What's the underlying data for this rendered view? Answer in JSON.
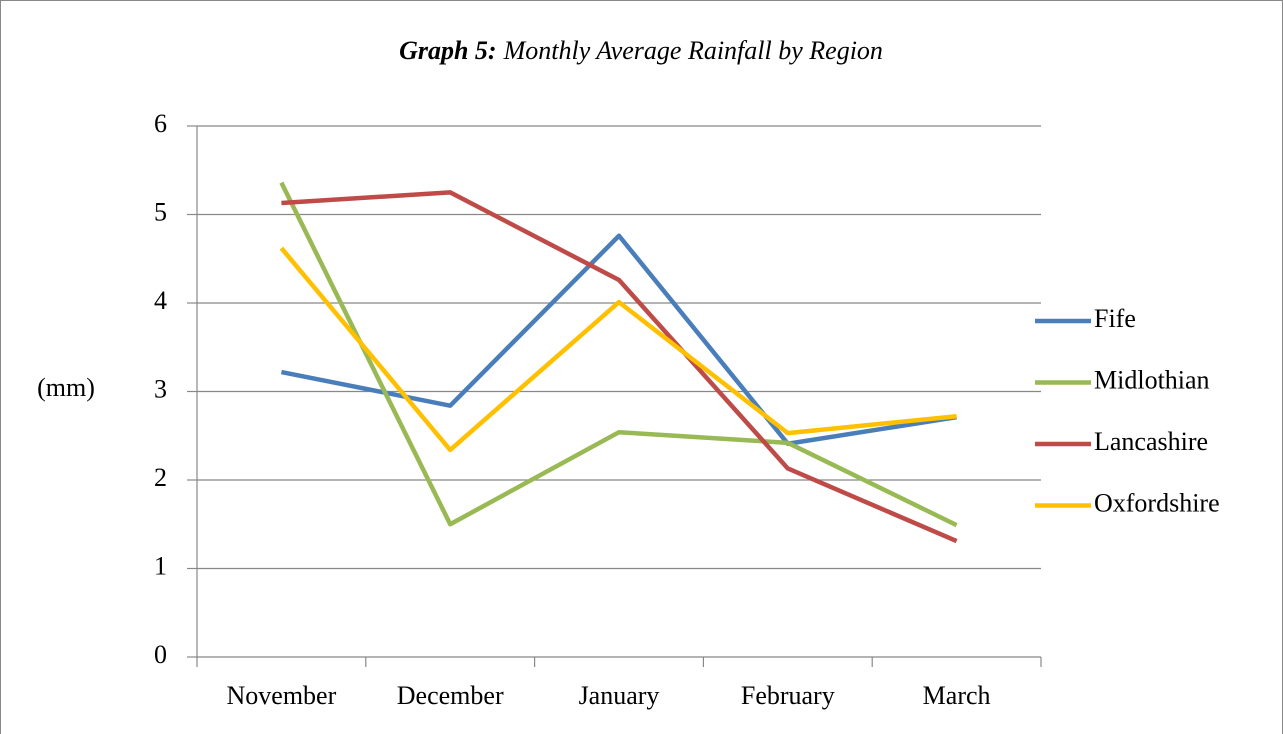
{
  "chart_data": {
    "type": "line",
    "title_prefix": "Graph 5:",
    "title": "Monthly Average Rainfall by Region",
    "y_label": "(mm)",
    "categories": [
      "November",
      "December",
      "January",
      "February",
      "March"
    ],
    "series": [
      {
        "name": "Fife",
        "color": "#4a7ebb",
        "values": [
          3.22,
          2.84,
          4.76,
          2.41,
          2.71
        ]
      },
      {
        "name": "Midlothian",
        "color": "#98b954",
        "values": [
          5.36,
          1.5,
          2.54,
          2.42,
          1.49
        ]
      },
      {
        "name": "Lancashire",
        "color": "#be4b48",
        "values": [
          5.13,
          5.25,
          4.26,
          2.13,
          1.31
        ]
      },
      {
        "name": "Oxfordshire",
        "color": "#ffc000",
        "values": [
          4.62,
          2.34,
          4.01,
          2.53,
          2.72
        ]
      }
    ],
    "ylim": [
      0,
      6
    ],
    "yticks": [
      0,
      1,
      2,
      3,
      4,
      5,
      6
    ],
    "grid": true,
    "legend": "right"
  }
}
